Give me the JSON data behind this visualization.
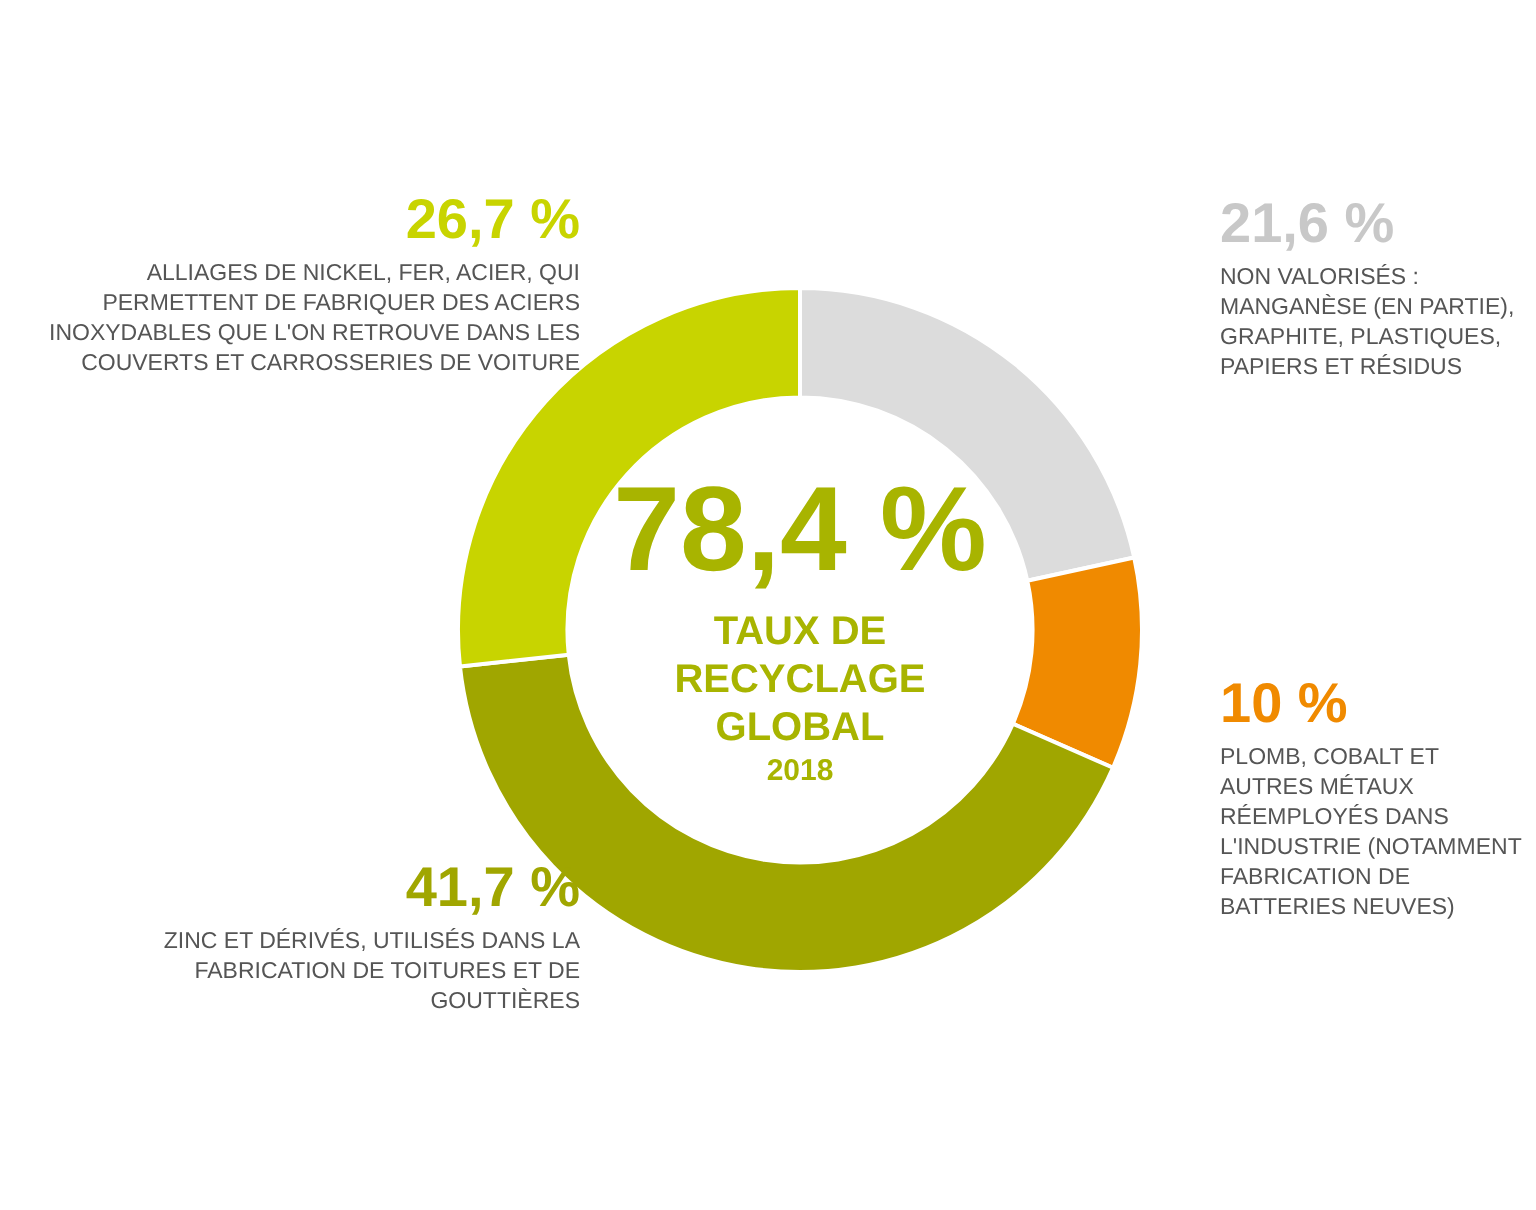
{
  "chart_data": {
    "type": "donut",
    "title": "78,4 %",
    "subtitle": "TAUX DE RECYCLAGE GLOBAL",
    "annotations": [
      "2018"
    ],
    "categories": [
      "NON VALORISÉS : MANGANÈSE (EN PARTIE), GRAPHITE, PLASTIQUES, PAPIERS ET RÉSIDUS",
      "PLOMB, COBALT ET AUTRES MÉTAUX RÉEMPLOYÉS DANS L'INDUSTRIE (NOTAMMENT FABRICATION DE BATTERIES NEUVES)",
      "ZINC ET DÉRIVÉS, UTILISÉS DANS LA FABRICATION DE TOITURES ET DE GOUTTIÈRES",
      "ALLIAGES DE NICKEL, FER, ACIER, QUI PERMETTENT DE FABRIQUER DES ACIERS INOXYDABLES QUE L'ON RETROUVE DANS LES COUVERTS ET CARROSSERIES DE VOITURE"
    ],
    "values": [
      21.6,
      10,
      41.7,
      26.7
    ],
    "value_labels": [
      "21,6 %",
      "10 %",
      "41,7 %",
      "26,7 %"
    ],
    "colors": [
      "#dcdcdc",
      "#f08a00",
      "#a0a600",
      "#c8d400"
    ],
    "legend": false
  }
}
